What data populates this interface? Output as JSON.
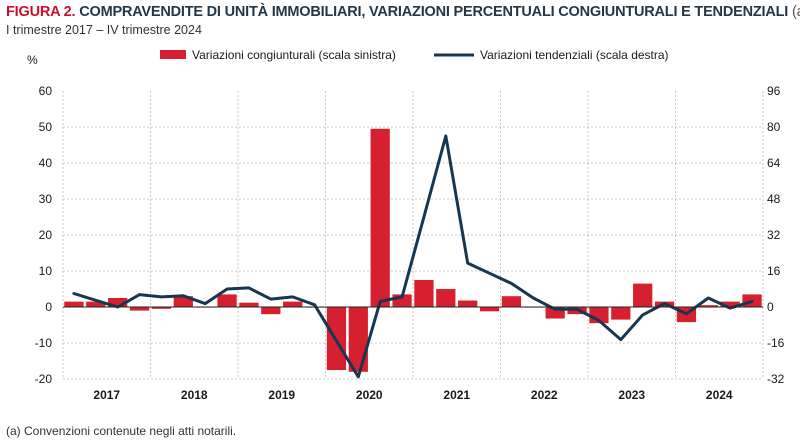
{
  "header": {
    "figure_label": "FIGURA 2.",
    "title": "COMPRAVENDITE DI UNITÀ IMMOBILIARI, VARIAZIONI PERCENTUALI CONGIUNTURALI E TENDENZIALI",
    "title_note": "(a).",
    "subtitle": "I trimestre 2017 – IV trimestre 2024"
  },
  "footnote": "(a) Convenzioni contenute negli atti notarili.",
  "chart_data": {
    "type": "bar+line",
    "unit_label": "%",
    "legend": {
      "bar": "Variazioni congiunturali (scala sinistra)",
      "line": "Variazioni tendenziali (scala destra)"
    },
    "colors": {
      "bar": "#d6202f",
      "line": "#17364f",
      "grid": "#c8c8c8",
      "axis": "#222222"
    },
    "years": [
      "2017",
      "2018",
      "2019",
      "2020",
      "2021",
      "2022",
      "2023",
      "2024"
    ],
    "left_axis": {
      "min": -20,
      "max": 60,
      "ticks": [
        -20,
        -10,
        0,
        10,
        20,
        30,
        40,
        50,
        60
      ]
    },
    "right_axis": {
      "min": -32,
      "max": 96,
      "ticks": [
        -32,
        -16,
        0,
        16,
        32,
        48,
        64,
        80,
        96
      ]
    },
    "quarters_per_year": 4,
    "congiunturali": [
      1.5,
      1.5,
      2.5,
      -1.0,
      -0.5,
      3.0,
      0.0,
      3.5,
      1.2,
      -2.0,
      1.5,
      0.0,
      -17.5,
      -18.0,
      49.5,
      3.5,
      7.5,
      5.0,
      1.8,
      -1.2,
      3.0,
      0.0,
      -3.2,
      -2.0,
      -4.5,
      -3.5,
      6.5,
      1.5,
      -4.2,
      0.5,
      1.5,
      3.5
    ],
    "tendenziali": [
      6.0,
      3.0,
      0.0,
      5.5,
      4.5,
      5.0,
      1.5,
      8.0,
      8.5,
      3.5,
      4.5,
      1.0,
      -15.0,
      -31.0,
      2.5,
      4.5,
      40.0,
      76.0,
      19.5,
      15.0,
      10.5,
      4.0,
      -1.0,
      -1.0,
      -6.0,
      -14.5,
      -3.5,
      1.5,
      -3.0,
      4.0,
      -0.5,
      2.5
    ]
  }
}
